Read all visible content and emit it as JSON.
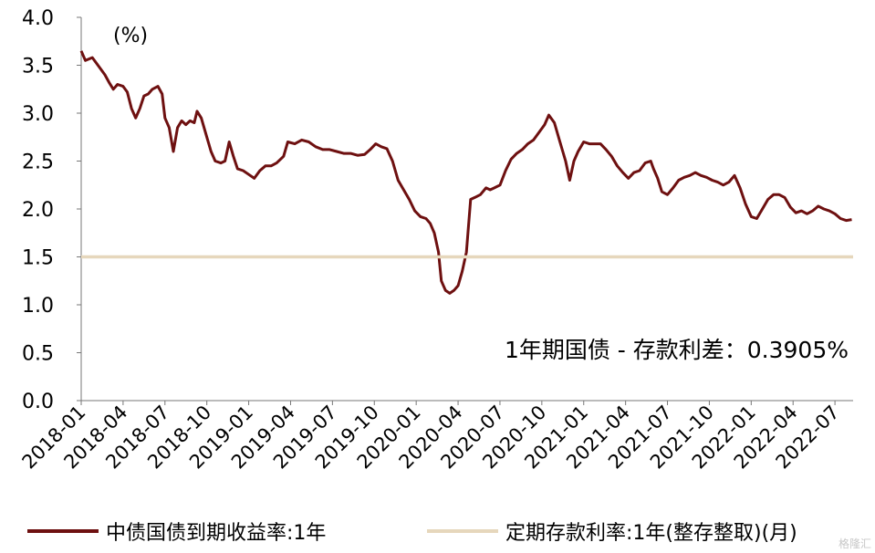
{
  "chart_data": {
    "type": "line",
    "ylabel": "(%)",
    "ylim": [
      0.0,
      4.0
    ],
    "yticks": [
      "0.0",
      "0.5",
      "1.0",
      "1.5",
      "2.0",
      "2.5",
      "3.0",
      "3.5",
      "4.0"
    ],
    "xticks": [
      "2018-01",
      "2018-04",
      "2018-07",
      "2018-10",
      "2019-01",
      "2019-04",
      "2019-07",
      "2019-10",
      "2020-01",
      "2020-04",
      "2020-07",
      "2020-10",
      "2021-01",
      "2021-04",
      "2021-07",
      "2021-10",
      "2022-01",
      "2022-04",
      "2022-07"
    ],
    "x_range_months": [
      0,
      55.3
    ],
    "annotation": "1年期国债 - 存款利差：0.3905%",
    "series": [
      {
        "name": "中债国债到期收益率:1年",
        "color": "#6e1010",
        "points": [
          [
            0.0,
            3.65
          ],
          [
            0.3,
            3.55
          ],
          [
            0.8,
            3.58
          ],
          [
            1.3,
            3.48
          ],
          [
            1.7,
            3.4
          ],
          [
            2.0,
            3.32
          ],
          [
            2.3,
            3.25
          ],
          [
            2.6,
            3.3
          ],
          [
            3.0,
            3.28
          ],
          [
            3.3,
            3.22
          ],
          [
            3.6,
            3.05
          ],
          [
            3.9,
            2.95
          ],
          [
            4.2,
            3.05
          ],
          [
            4.5,
            3.18
          ],
          [
            4.8,
            3.2
          ],
          [
            5.1,
            3.25
          ],
          [
            5.5,
            3.28
          ],
          [
            5.8,
            3.2
          ],
          [
            6.0,
            2.95
          ],
          [
            6.3,
            2.85
          ],
          [
            6.6,
            2.6
          ],
          [
            6.9,
            2.85
          ],
          [
            7.2,
            2.92
          ],
          [
            7.5,
            2.88
          ],
          [
            7.8,
            2.92
          ],
          [
            8.1,
            2.9
          ],
          [
            8.3,
            3.02
          ],
          [
            8.6,
            2.95
          ],
          [
            9.0,
            2.75
          ],
          [
            9.3,
            2.6
          ],
          [
            9.6,
            2.5
          ],
          [
            10.0,
            2.48
          ],
          [
            10.3,
            2.5
          ],
          [
            10.6,
            2.7
          ],
          [
            10.9,
            2.55
          ],
          [
            11.2,
            2.42
          ],
          [
            11.6,
            2.4
          ],
          [
            12.0,
            2.36
          ],
          [
            12.4,
            2.32
          ],
          [
            12.8,
            2.4
          ],
          [
            13.2,
            2.45
          ],
          [
            13.6,
            2.45
          ],
          [
            14.0,
            2.48
          ],
          [
            14.5,
            2.55
          ],
          [
            14.8,
            2.7
          ],
          [
            15.3,
            2.68
          ],
          [
            15.8,
            2.72
          ],
          [
            16.3,
            2.7
          ],
          [
            16.8,
            2.65
          ],
          [
            17.3,
            2.62
          ],
          [
            17.8,
            2.62
          ],
          [
            18.3,
            2.6
          ],
          [
            18.8,
            2.58
          ],
          [
            19.3,
            2.58
          ],
          [
            19.8,
            2.56
          ],
          [
            20.3,
            2.57
          ],
          [
            20.7,
            2.62
          ],
          [
            21.1,
            2.68
          ],
          [
            21.5,
            2.65
          ],
          [
            21.9,
            2.63
          ],
          [
            22.3,
            2.5
          ],
          [
            22.7,
            2.3
          ],
          [
            23.1,
            2.2
          ],
          [
            23.5,
            2.1
          ],
          [
            23.9,
            1.98
          ],
          [
            24.3,
            1.92
          ],
          [
            24.7,
            1.9
          ],
          [
            25.0,
            1.85
          ],
          [
            25.3,
            1.75
          ],
          [
            25.6,
            1.55
          ],
          [
            25.8,
            1.25
          ],
          [
            26.1,
            1.15
          ],
          [
            26.4,
            1.12
          ],
          [
            26.7,
            1.15
          ],
          [
            27.0,
            1.2
          ],
          [
            27.3,
            1.35
          ],
          [
            27.6,
            1.55
          ],
          [
            27.9,
            2.1
          ],
          [
            28.2,
            2.12
          ],
          [
            28.6,
            2.15
          ],
          [
            29.0,
            2.22
          ],
          [
            29.3,
            2.2
          ],
          [
            29.6,
            2.22
          ],
          [
            30.0,
            2.25
          ],
          [
            30.4,
            2.4
          ],
          [
            30.8,
            2.52
          ],
          [
            31.2,
            2.58
          ],
          [
            31.6,
            2.62
          ],
          [
            32.0,
            2.68
          ],
          [
            32.4,
            2.72
          ],
          [
            32.8,
            2.8
          ],
          [
            33.2,
            2.88
          ],
          [
            33.5,
            2.98
          ],
          [
            33.9,
            2.9
          ],
          [
            34.3,
            2.7
          ],
          [
            34.7,
            2.5
          ],
          [
            35.0,
            2.3
          ],
          [
            35.3,
            2.5
          ],
          [
            35.6,
            2.6
          ],
          [
            36.0,
            2.7
          ],
          [
            36.4,
            2.68
          ],
          [
            36.8,
            2.68
          ],
          [
            37.2,
            2.68
          ],
          [
            37.6,
            2.62
          ],
          [
            38.0,
            2.55
          ],
          [
            38.4,
            2.45
          ],
          [
            38.8,
            2.38
          ],
          [
            39.2,
            2.32
          ],
          [
            39.6,
            2.38
          ],
          [
            40.0,
            2.4
          ],
          [
            40.4,
            2.48
          ],
          [
            40.8,
            2.5
          ],
          [
            41.0,
            2.42
          ],
          [
            41.3,
            2.32
          ],
          [
            41.6,
            2.18
          ],
          [
            42.0,
            2.15
          ],
          [
            42.4,
            2.22
          ],
          [
            42.8,
            2.3
          ],
          [
            43.2,
            2.33
          ],
          [
            43.6,
            2.35
          ],
          [
            44.0,
            2.38
          ],
          [
            44.4,
            2.35
          ],
          [
            44.8,
            2.33
          ],
          [
            45.2,
            2.3
          ],
          [
            45.6,
            2.28
          ],
          [
            46.0,
            2.25
          ],
          [
            46.4,
            2.28
          ],
          [
            46.8,
            2.35
          ],
          [
            47.2,
            2.22
          ],
          [
            47.6,
            2.05
          ],
          [
            48.0,
            1.92
          ],
          [
            48.4,
            1.9
          ],
          [
            48.8,
            2.0
          ],
          [
            49.2,
            2.1
          ],
          [
            49.6,
            2.15
          ],
          [
            50.0,
            2.15
          ],
          [
            50.4,
            2.12
          ],
          [
            50.8,
            2.02
          ],
          [
            51.2,
            1.96
          ],
          [
            51.6,
            1.98
          ],
          [
            52.0,
            1.95
          ],
          [
            52.4,
            1.98
          ],
          [
            52.8,
            2.03
          ],
          [
            53.2,
            2.0
          ],
          [
            53.6,
            1.98
          ],
          [
            54.0,
            1.95
          ],
          [
            54.4,
            1.9
          ],
          [
            54.8,
            1.88
          ],
          [
            55.2,
            1.89
          ]
        ]
      },
      {
        "name": "定期存款利率:1年(整存整取)(月)",
        "color": "#e6d7bc",
        "points": [
          [
            0.0,
            1.5
          ],
          [
            55.3,
            1.5
          ]
        ]
      }
    ]
  },
  "legend": {
    "series1_label": "中债国债到期收益率:1年",
    "series2_label": "定期存款利率:1年(整存整取)(月)"
  },
  "watermark": "格隆汇"
}
